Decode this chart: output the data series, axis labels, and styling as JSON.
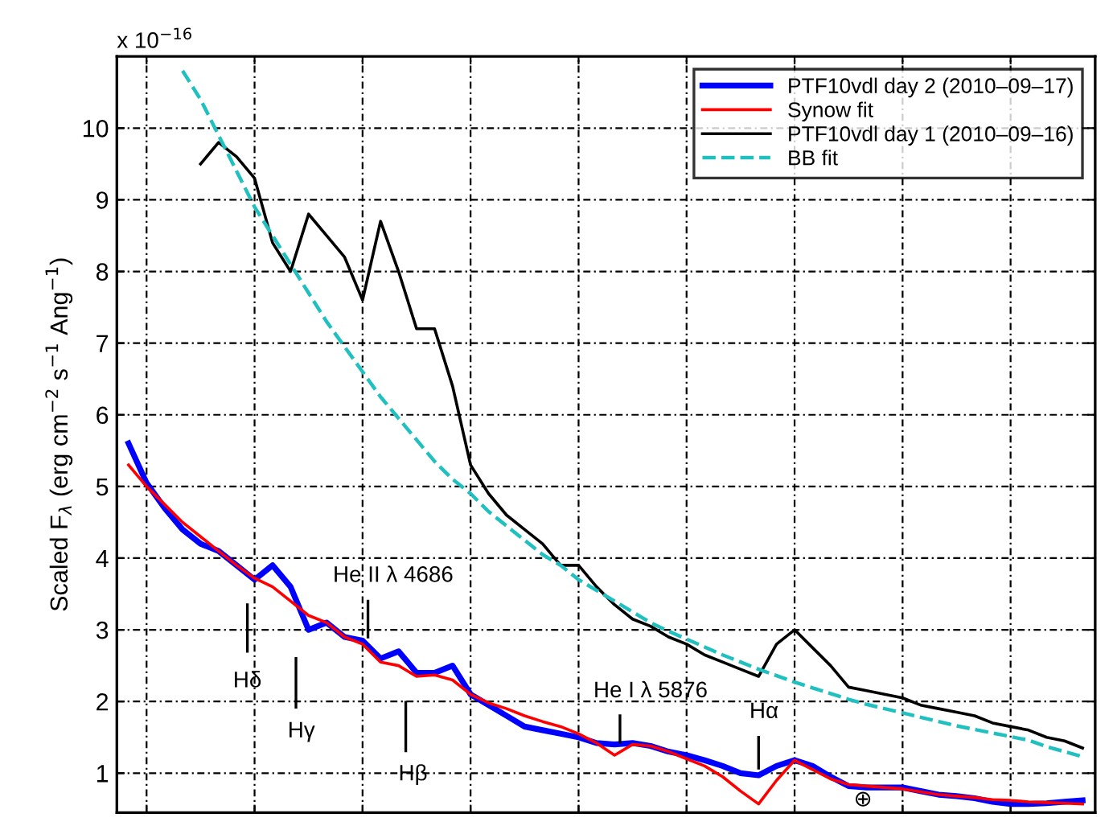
{
  "chart_data": {
    "type": "line",
    "ylabel": "Scaled F$_{λ}$ (erg cm$^{−2}$ s$^{−1}$ Ang$^{−1}$)",
    "categories": [
      null,
      null,
      null,
      null,
      null,
      null,
      null,
      null,
      null,
      null,
      null,
      null,
      null,
      null,
      null,
      null,
      null,
      null,
      null,
      null,
      null,
      null,
      null,
      null,
      null,
      null,
      null,
      null,
      null,
      null,
      null,
      null,
      null,
      null,
      null,
      null,
      null,
      null,
      null,
      null,
      null,
      null,
      null,
      null,
      null,
      null,
      null,
      null,
      null,
      null,
      null,
      null,
      null,
      null
    ],
    "series": [
      {
        "name": "PTF10vdl day 2 (2010–09–17)",
        "color": "#0000ff",
        "line_style": "solid",
        "values": [
          5.6,
          5.05,
          4.7,
          4.4,
          4.2,
          4.1,
          3.9,
          3.7,
          3.9,
          3.6,
          3.0,
          3.1,
          2.9,
          2.85,
          2.6,
          2.7,
          2.4,
          2.4,
          2.5,
          2.1,
          1.95,
          1.8,
          1.65,
          1.6,
          1.55,
          1.5,
          1.42,
          1.4,
          1.42,
          1.38,
          1.3,
          1.25,
          1.18,
          1.1,
          1.0,
          0.97,
          1.1,
          1.18,
          1.1,
          0.95,
          0.82,
          0.8,
          0.8,
          0.8,
          0.75,
          0.7,
          0.68,
          0.65,
          0.6,
          0.57,
          0.57,
          0.58,
          0.6,
          0.62
        ]
      },
      {
        "name": "Synow fit",
        "color": "#ff0000",
        "line_style": "solid",
        "values": [
          5.3,
          5.0,
          4.75,
          4.5,
          4.3,
          4.1,
          3.9,
          3.72,
          3.6,
          3.4,
          3.2,
          3.1,
          2.9,
          2.8,
          2.55,
          2.5,
          2.35,
          2.37,
          2.3,
          2.1,
          1.98,
          1.9,
          1.8,
          1.72,
          1.65,
          1.55,
          1.42,
          1.25,
          1.4,
          1.38,
          1.3,
          1.2,
          1.1,
          0.95,
          0.75,
          0.57,
          0.9,
          1.18,
          1.05,
          0.92,
          0.84,
          0.82,
          0.8,
          0.78,
          0.74,
          0.7,
          0.68,
          0.66,
          0.63,
          0.62,
          0.6,
          0.59,
          0.58,
          0.57
        ]
      },
      {
        "name": "PTF10vdl day 1 (2010–09–16)",
        "color": "#000000",
        "line_style": "solid",
        "values": [
          null,
          null,
          null,
          null,
          9.5,
          9.8,
          9.6,
          9.3,
          8.4,
          8.0,
          8.8,
          8.5,
          8.2,
          7.6,
          8.7,
          8.0,
          7.2,
          7.2,
          6.4,
          5.3,
          4.9,
          4.6,
          4.4,
          4.2,
          3.9,
          3.9,
          3.6,
          3.35,
          3.15,
          3.05,
          2.9,
          2.8,
          2.65,
          2.55,
          2.45,
          2.35,
          2.8,
          3.0,
          2.75,
          2.5,
          2.2,
          2.15,
          2.1,
          2.05,
          1.95,
          1.9,
          1.85,
          1.8,
          1.7,
          1.65,
          1.6,
          1.5,
          1.45,
          1.35
        ]
      },
      {
        "name": "BB fit",
        "color": "#20c0c0",
        "line_style": "dashed",
        "values": [
          null,
          null,
          null,
          10.8,
          10.4,
          9.9,
          9.4,
          8.9,
          8.5,
          8.1,
          7.7,
          7.3,
          6.95,
          6.6,
          6.25,
          5.95,
          5.65,
          5.35,
          5.1,
          4.9,
          4.65,
          4.45,
          4.25,
          4.05,
          3.9,
          3.7,
          3.55,
          3.4,
          3.25,
          3.1,
          2.98,
          2.87,
          2.76,
          2.65,
          2.55,
          2.45,
          2.36,
          2.27,
          2.19,
          2.11,
          2.03,
          1.96,
          1.9,
          1.84,
          1.78,
          1.72,
          1.66,
          1.61,
          1.56,
          1.51,
          1.46,
          1.37,
          1.3,
          1.23
        ]
      }
    ],
    "ylim": [
      0.45,
      11
    ],
    "yticks": [
      1,
      2,
      3,
      4,
      5,
      6,
      7,
      8,
      9,
      10
    ],
    "annotations": [
      "x 10$^{−16}$",
      "Hδ",
      "Hγ",
      "He II λ 4686",
      "Hβ",
      "He I λ 5876",
      "Hα",
      "⊕"
    ],
    "grid": true,
    "legend": "top right",
    "tick_labels": "y"
  }
}
